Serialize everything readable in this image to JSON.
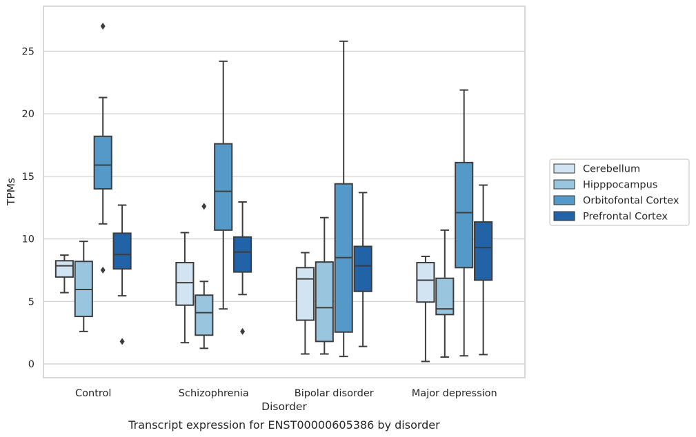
{
  "chart_data": {
    "type": "box",
    "xlabel": "Disorder",
    "ylabel": "TPMs",
    "caption": "Transcript expression for ENST00000605386 by disorder",
    "ylim": [
      -1.1,
      28.6
    ],
    "yticks": [
      0,
      5,
      10,
      15,
      20,
      25
    ],
    "grid": "horizontal",
    "legend_placement": "right",
    "categories": [
      "Control",
      "Schizophrenia",
      "Bipolar disorder",
      "Major depression"
    ],
    "series": [
      {
        "name": "Cerebellum",
        "color": "#d2e3f1",
        "boxes": [
          {
            "whisker_low": 5.7,
            "q1": 6.95,
            "median": 7.85,
            "q3": 8.25,
            "whisker_high": 8.7,
            "outliers": []
          },
          {
            "whisker_low": 1.7,
            "q1": 4.7,
            "median": 6.5,
            "q3": 8.1,
            "whisker_high": 10.5,
            "outliers": []
          },
          {
            "whisker_low": 0.8,
            "q1": 3.5,
            "median": 6.8,
            "q3": 7.7,
            "whisker_high": 8.9,
            "outliers": []
          },
          {
            "whisker_low": 0.2,
            "q1": 4.95,
            "median": 6.7,
            "q3": 8.1,
            "whisker_high": 8.6,
            "outliers": []
          }
        ]
      },
      {
        "name": "Hipppocampus",
        "color": "#9ac5df",
        "boxes": [
          {
            "whisker_low": 2.6,
            "q1": 3.8,
            "median": 5.95,
            "q3": 8.2,
            "whisker_high": 9.8,
            "outliers": []
          },
          {
            "whisker_low": 1.25,
            "q1": 2.3,
            "median": 4.1,
            "q3": 5.5,
            "whisker_high": 6.6,
            "outliers": [
              12.6
            ]
          },
          {
            "whisker_low": 0.8,
            "q1": 1.8,
            "median": 4.5,
            "q3": 8.15,
            "whisker_high": 11.7,
            "outliers": []
          },
          {
            "whisker_low": 0.55,
            "q1": 3.95,
            "median": 4.4,
            "q3": 6.85,
            "whisker_high": 10.7,
            "outliers": []
          }
        ]
      },
      {
        "name": "Orbitofontal Cortex",
        "color": "#5599c8",
        "boxes": [
          {
            "whisker_low": 11.2,
            "q1": 14.0,
            "median": 15.9,
            "q3": 18.2,
            "whisker_high": 21.3,
            "outliers": [
              7.5,
              27.0
            ]
          },
          {
            "whisker_low": 4.4,
            "q1": 10.7,
            "median": 13.8,
            "q3": 17.6,
            "whisker_high": 24.2,
            "outliers": []
          },
          {
            "whisker_low": 0.6,
            "q1": 2.55,
            "median": 8.5,
            "q3": 14.4,
            "whisker_high": 25.8,
            "outliers": []
          },
          {
            "whisker_low": 0.65,
            "q1": 7.7,
            "median": 12.1,
            "q3": 16.1,
            "whisker_high": 21.9,
            "outliers": []
          }
        ]
      },
      {
        "name": "Prefrontal Cortex",
        "color": "#2262a6",
        "boxes": [
          {
            "whisker_low": 5.45,
            "q1": 7.6,
            "median": 8.75,
            "q3": 10.45,
            "whisker_high": 12.7,
            "outliers": [
              1.8
            ]
          },
          {
            "whisker_low": 5.55,
            "q1": 7.35,
            "median": 8.95,
            "q3": 10.15,
            "whisker_high": 12.95,
            "outliers": [
              2.6
            ]
          },
          {
            "whisker_low": 1.4,
            "q1": 5.8,
            "median": 7.85,
            "q3": 9.4,
            "whisker_high": 13.7,
            "outliers": []
          },
          {
            "whisker_low": 0.75,
            "q1": 6.7,
            "median": 9.3,
            "q3": 11.35,
            "whisker_high": 14.3,
            "outliers": []
          }
        ]
      }
    ]
  },
  "style": {
    "line_color": "#3d3d3d",
    "grid_color": "#cccccc",
    "frame_color": "#cccccc"
  }
}
